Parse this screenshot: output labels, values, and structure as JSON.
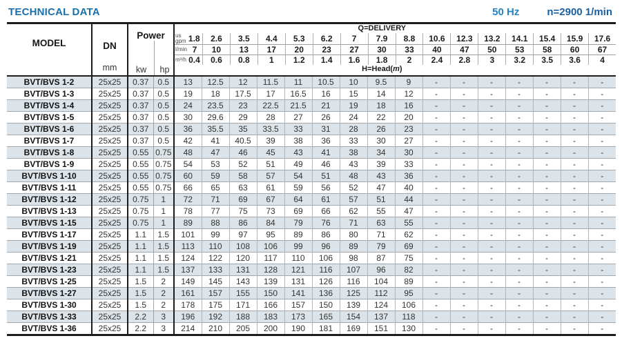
{
  "header": {
    "title": "TECHNICAL DATA",
    "frequency": "50 Hz",
    "speed": "n=2900 1/min"
  },
  "colors": {
    "title_blue": "#1c6fad",
    "frequency_blue": "#2383c4",
    "speed_blue": "#1a5f9e",
    "row_stripe": "#dce4e9",
    "line_dark": "#1c1c1c",
    "line_light": "#9aa2a8"
  },
  "table": {
    "model_label": "MODEL",
    "dn_label": "DN",
    "dn_unit": "mm",
    "power_label": "Power",
    "kw_label": "kw",
    "hp_label": "hp",
    "delivery_label": "Q=DELIVERY",
    "head_label_prefix": "H=Head(",
    "head_label_unit": "m",
    "head_label_suffix": ")",
    "units": [
      {
        "label_lines": [
          "us",
          "gpm"
        ],
        "values": [
          "1.8",
          "2.6",
          "3.5",
          "4.4",
          "5.3",
          "6.2",
          "7",
          "7.9",
          "8.8",
          "10.6",
          "12.3",
          "13.2",
          "14.1",
          "15.4",
          "15.9",
          "17.6"
        ]
      },
      {
        "label_lines": [
          "l/min"
        ],
        "values": [
          "7",
          "10",
          "13",
          "17",
          "20",
          "23",
          "27",
          "30",
          "33",
          "40",
          "47",
          "50",
          "53",
          "58",
          "60",
          "67"
        ]
      },
      {
        "label_lines": [
          "m³/h"
        ],
        "values": [
          "0.4",
          "0.6",
          "0.8",
          "1",
          "1.2",
          "1.4",
          "1.6",
          "1.8",
          "2",
          "2.4",
          "2.8",
          "3",
          "3.2",
          "3.5",
          "3.6",
          "4"
        ]
      }
    ],
    "rows": [
      {
        "model": "BVT/BVS 1-2",
        "dn": "25x25",
        "kw": "0.37",
        "hp": "0.5",
        "head": [
          "13",
          "12.5",
          "12",
          "11.5",
          "11",
          "10.5",
          "10",
          "9.5",
          "9",
          "-",
          "-",
          "-",
          "-",
          "-",
          "-",
          "-"
        ]
      },
      {
        "model": "BVT/BVS 1-3",
        "dn": "25x25",
        "kw": "0.37",
        "hp": "0.5",
        "head": [
          "19",
          "18",
          "17.5",
          "17",
          "16.5",
          "16",
          "15",
          "14",
          "12",
          "-",
          "-",
          "-",
          "-",
          "-",
          "-",
          "-"
        ]
      },
      {
        "model": "BVT/BVS 1-4",
        "dn": "25x25",
        "kw": "0.37",
        "hp": "0.5",
        "head": [
          "24",
          "23.5",
          "23",
          "22.5",
          "21.5",
          "21",
          "19",
          "18",
          "16",
          "-",
          "-",
          "-",
          "-",
          "-",
          "-",
          "-"
        ]
      },
      {
        "model": "BVT/BVS 1-5",
        "dn": "25x25",
        "kw": "0.37",
        "hp": "0.5",
        "head": [
          "30",
          "29.6",
          "29",
          "28",
          "27",
          "26",
          "24",
          "22",
          "20",
          "-",
          "-",
          "-",
          "-",
          "-",
          "-",
          "-"
        ]
      },
      {
        "model": "BVT/BVS 1-6",
        "dn": "25x25",
        "kw": "0.37",
        "hp": "0.5",
        "head": [
          "36",
          "35.5",
          "35",
          "33.5",
          "33",
          "31",
          "28",
          "26",
          "23",
          "-",
          "-",
          "-",
          "-",
          "-",
          "-",
          "-"
        ]
      },
      {
        "model": "BVT/BVS 1-7",
        "dn": "25x25",
        "kw": "0.37",
        "hp": "0.5",
        "head": [
          "42",
          "41",
          "40.5",
          "39",
          "38",
          "36",
          "33",
          "30",
          "27",
          "-",
          "-",
          "-",
          "-",
          "-",
          "-",
          "-"
        ]
      },
      {
        "model": "BVT/BVS 1-8",
        "dn": "25x25",
        "kw": "0.55",
        "hp": "0.75",
        "head": [
          "48",
          "47",
          "46",
          "45",
          "43",
          "41",
          "38",
          "34",
          "30",
          "-",
          "-",
          "-",
          "-",
          "-",
          "-",
          "-"
        ]
      },
      {
        "model": "BVT/BVS 1-9",
        "dn": "25x25",
        "kw": "0.55",
        "hp": "0.75",
        "head": [
          "54",
          "53",
          "52",
          "51",
          "49",
          "46",
          "43",
          "39",
          "33",
          "-",
          "-",
          "-",
          "-",
          "-",
          "-",
          "-"
        ]
      },
      {
        "model": "BVT/BVS 1-10",
        "dn": "25x25",
        "kw": "0.55",
        "hp": "0.75",
        "head": [
          "60",
          "59",
          "58",
          "57",
          "54",
          "51",
          "48",
          "43",
          "36",
          "-",
          "-",
          "-",
          "-",
          "-",
          "-",
          "-"
        ]
      },
      {
        "model": "BVT/BVS 1-11",
        "dn": "25x25",
        "kw": "0.55",
        "hp": "0.75",
        "head": [
          "66",
          "65",
          "63",
          "61",
          "59",
          "56",
          "52",
          "47",
          "40",
          "-",
          "-",
          "-",
          "-",
          "-",
          "-",
          "-"
        ]
      },
      {
        "model": "BVT/BVS 1-12",
        "dn": "25x25",
        "kw": "0.75",
        "hp": "1",
        "head": [
          "72",
          "71",
          "69",
          "67",
          "64",
          "61",
          "57",
          "51",
          "44",
          "-",
          "-",
          "-",
          "-",
          "-",
          "-",
          "-"
        ]
      },
      {
        "model": "BVT/BVS 1-13",
        "dn": "25x25",
        "kw": "0.75",
        "hp": "1",
        "head": [
          "78",
          "77",
          "75",
          "73",
          "69",
          "66",
          "62",
          "55",
          "47",
          "-",
          "-",
          "-",
          "-",
          "-",
          "-",
          "-"
        ]
      },
      {
        "model": "BVT/BVS 1-15",
        "dn": "25x25",
        "kw": "0.75",
        "hp": "1",
        "head": [
          "89",
          "88",
          "86",
          "84",
          "79",
          "76",
          "71",
          "63",
          "55",
          "-",
          "-",
          "-",
          "-",
          "-",
          "-",
          "-"
        ]
      },
      {
        "model": "BVT/BVS 1-17",
        "dn": "25x25",
        "kw": "1.1",
        "hp": "1.5",
        "head": [
          "101",
          "99",
          "97",
          "95",
          "89",
          "86",
          "80",
          "71",
          "62",
          "-",
          "-",
          "-",
          "-",
          "-",
          "-",
          "-"
        ]
      },
      {
        "model": "BVT/BVS 1-19",
        "dn": "25x25",
        "kw": "1.1",
        "hp": "1.5",
        "head": [
          "113",
          "110",
          "108",
          "106",
          "99",
          "96",
          "89",
          "79",
          "69",
          "-",
          "-",
          "-",
          "-",
          "-",
          "-",
          "-"
        ]
      },
      {
        "model": "BVT/BVS 1-21",
        "dn": "25x25",
        "kw": "1.1",
        "hp": "1.5",
        "head": [
          "124",
          "122",
          "120",
          "117",
          "110",
          "106",
          "98",
          "87",
          "75",
          "-",
          "-",
          "-",
          "-",
          "-",
          "-",
          "-"
        ]
      },
      {
        "model": "BVT/BVS 1-23",
        "dn": "25x25",
        "kw": "1.1",
        "hp": "1.5",
        "head": [
          "137",
          "133",
          "131",
          "128",
          "121",
          "116",
          "107",
          "96",
          "82",
          "-",
          "-",
          "-",
          "-",
          "-",
          "-",
          "-"
        ]
      },
      {
        "model": "BVT/BVS 1-25",
        "dn": "25x25",
        "kw": "1.5",
        "hp": "2",
        "head": [
          "149",
          "145",
          "143",
          "139",
          "131",
          "126",
          "116",
          "104",
          "89",
          "-",
          "-",
          "-",
          "-",
          "-",
          "-",
          "-"
        ]
      },
      {
        "model": "BVT/BVS 1-27",
        "dn": "25x25",
        "kw": "1.5",
        "hp": "2",
        "head": [
          "161",
          "157",
          "155",
          "150",
          "141",
          "136",
          "125",
          "112",
          "95",
          "-",
          "-",
          "-",
          "-",
          "-",
          "-",
          "-"
        ]
      },
      {
        "model": "BVT/BVS 1-30",
        "dn": "25x25",
        "kw": "1.5",
        "hp": "2",
        "head": [
          "178",
          "175",
          "171",
          "166",
          "157",
          "150",
          "139",
          "124",
          "106",
          "-",
          "-",
          "-",
          "-",
          "-",
          "-",
          "-"
        ]
      },
      {
        "model": "BVT/BVS 1-33",
        "dn": "25x25",
        "kw": "2.2",
        "hp": "3",
        "head": [
          "196",
          "192",
          "188",
          "183",
          "173",
          "165",
          "154",
          "137",
          "118",
          "-",
          "-",
          "-",
          "-",
          "-",
          "-",
          "-"
        ]
      },
      {
        "model": "BVT/BVS 1-36",
        "dn": "25x25",
        "kw": "2.2",
        "hp": "3",
        "head": [
          "214",
          "210",
          "205",
          "200",
          "190",
          "181",
          "169",
          "151",
          "130",
          "-",
          "-",
          "-",
          "-",
          "-",
          "-",
          "-"
        ]
      }
    ]
  }
}
